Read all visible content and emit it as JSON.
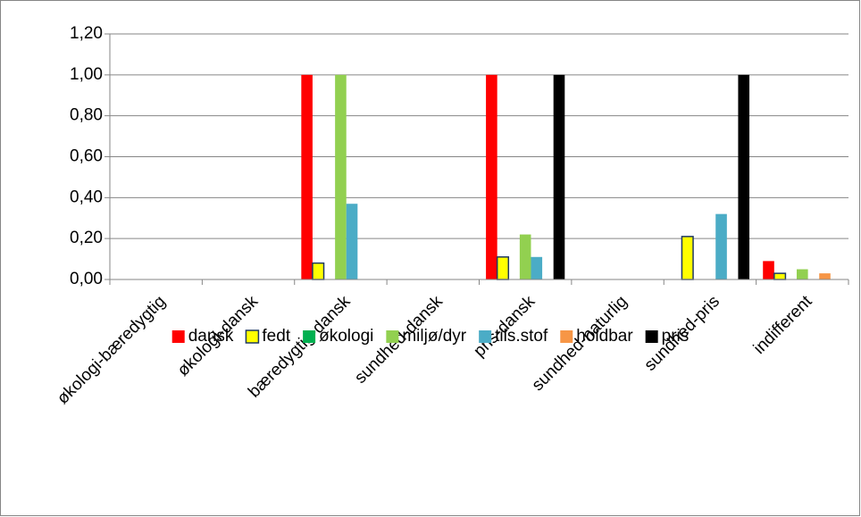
{
  "chart_data": {
    "type": "bar",
    "categories": [
      "økologi-bæredygtig",
      "økologi-dansk",
      "bæredygtig-dansk",
      "sundhed-dansk",
      "pris-dansk",
      "sundhed-naturlig",
      "sundhed-pris",
      "indifferent"
    ],
    "series": [
      {
        "name": "dansk",
        "color": "#ff0000",
        "values": [
          0,
          0,
          1.0,
          0,
          1.0,
          0,
          0,
          0.09
        ]
      },
      {
        "name": "fedt",
        "color": "#ffff00",
        "stroke": "#1f3864",
        "values": [
          0,
          0,
          0.08,
          0,
          0.11,
          0,
          0.21,
          0.03
        ]
      },
      {
        "name": "økologi",
        "color": "#00b050",
        "values": [
          0,
          0,
          0,
          0,
          0,
          0,
          0,
          0
        ]
      },
      {
        "name": "miljø/dyr",
        "color": "#92d050",
        "values": [
          0,
          0,
          1.0,
          0,
          0.22,
          0,
          0,
          0.05
        ]
      },
      {
        "name": "tils.stof",
        "color": "#4bacc6",
        "values": [
          0,
          0,
          0.37,
          0,
          0.11,
          0,
          0.32,
          0
        ]
      },
      {
        "name": "holdbar",
        "color": "#f79646",
        "values": [
          0,
          0,
          0,
          0,
          0,
          0,
          0,
          0.03
        ]
      },
      {
        "name": "pris",
        "color": "#000000",
        "values": [
          0,
          0,
          0,
          0,
          1.0,
          0,
          1.0,
          0
        ]
      }
    ],
    "ylim": [
      0,
      1.2
    ],
    "yticks": [
      {
        "value": 0,
        "label": "0,00"
      },
      {
        "value": 0.2,
        "label": "0,20"
      },
      {
        "value": 0.4,
        "label": "0,40"
      },
      {
        "value": 0.6,
        "label": "0,60"
      },
      {
        "value": 0.8,
        "label": "0,80"
      },
      {
        "value": 1.0,
        "label": "1,00"
      },
      {
        "value": 1.2,
        "label": "1,20"
      }
    ],
    "grid": true,
    "legend": "bottom"
  }
}
